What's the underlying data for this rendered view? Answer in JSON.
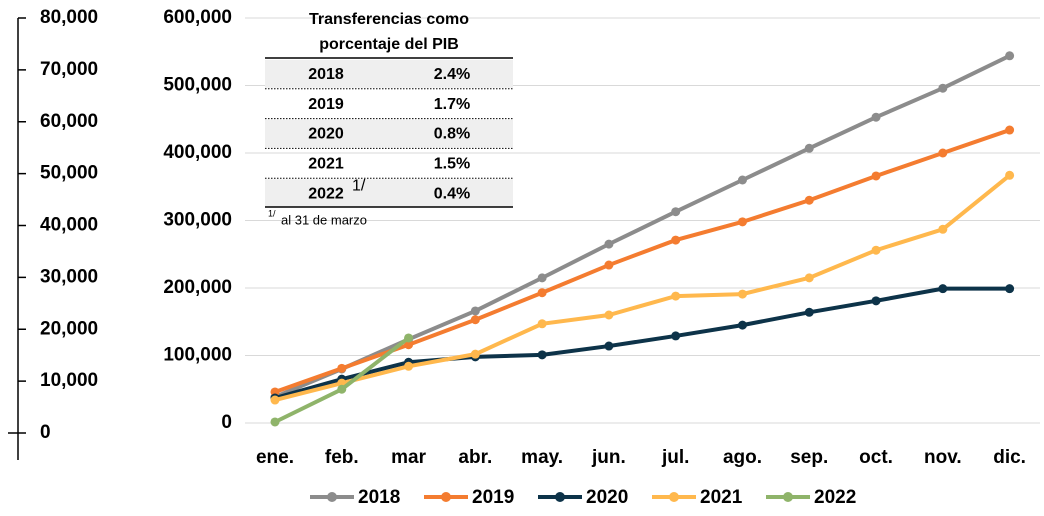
{
  "chart_data": {
    "type": "line",
    "categories": [
      "ene.",
      "feb.",
      "mar",
      "abr.",
      "may.",
      "jun.",
      "jul.",
      "ago.",
      "sep.",
      "oct.",
      "nov.",
      "dic."
    ],
    "series": [
      {
        "name": "2018",
        "color": "#8c8c8c",
        "values": [
          38500,
          80000,
          124000,
          166000,
          215000,
          265000,
          313000,
          360000,
          407000,
          453000,
          496000,
          544000
        ]
      },
      {
        "name": "2019",
        "color": "#f47c30",
        "values": [
          46000,
          81000,
          116000,
          153000,
          193000,
          234000,
          271000,
          298000,
          330000,
          366000,
          400000,
          434000
        ]
      },
      {
        "name": "2020",
        "color": "#0d3349",
        "values": [
          37000,
          65000,
          90000,
          98000,
          101000,
          114000,
          129000,
          145000,
          164000,
          181000,
          199000,
          199000
        ]
      },
      {
        "name": "2021",
        "color": "#ffb84d",
        "values": [
          34000,
          59000,
          84000,
          102000,
          147000,
          160000,
          188000,
          191000,
          215000,
          256000,
          287000,
          367000
        ]
      },
      {
        "name": "2022",
        "color": "#8fb46a",
        "values": [
          1500,
          50000,
          126000,
          null,
          null,
          null,
          null,
          null,
          null,
          null,
          null,
          null
        ]
      }
    ],
    "ylim": [
      0,
      600000
    ],
    "yticks": [
      0,
      {
        "value": 100000,
        "label": "100,000"
      },
      {
        "value": 200000,
        "label": "200,000"
      },
      {
        "value": 300000,
        "label": "300,000"
      },
      {
        "value": 400000,
        "label": "400,000"
      },
      {
        "value": 500000,
        "label": "500,000"
      },
      {
        "value": 600000,
        "label": "600,000"
      }
    ],
    "y2lim": [
      0,
      80000
    ],
    "y2ticks": [
      0,
      {
        "value": 10000,
        "label": "10,000"
      },
      {
        "value": 20000,
        "label": "20,000"
      },
      {
        "value": 30000,
        "label": "30,000"
      },
      {
        "value": 40000,
        "label": "40,000"
      },
      {
        "value": 50000,
        "label": "50,000"
      },
      {
        "value": 60000,
        "label": "60,000"
      },
      {
        "value": 70000,
        "label": "70,000"
      },
      {
        "value": 80000,
        "label": "80,000"
      }
    ],
    "grid": true,
    "legend": "bottom",
    "table": {
      "title_lines": [
        "Transferencias como",
        "porcentaje del PIB"
      ],
      "rows": [
        [
          "2018",
          "2.4%"
        ],
        [
          "2019",
          "1.7%"
        ],
        [
          "2020",
          "0.8%"
        ],
        [
          "2021",
          "1.5%"
        ],
        [
          "2022",
          "0.4%"
        ]
      ],
      "footnote_mark": "1/",
      "footnote": "al 31 de marzo"
    }
  }
}
